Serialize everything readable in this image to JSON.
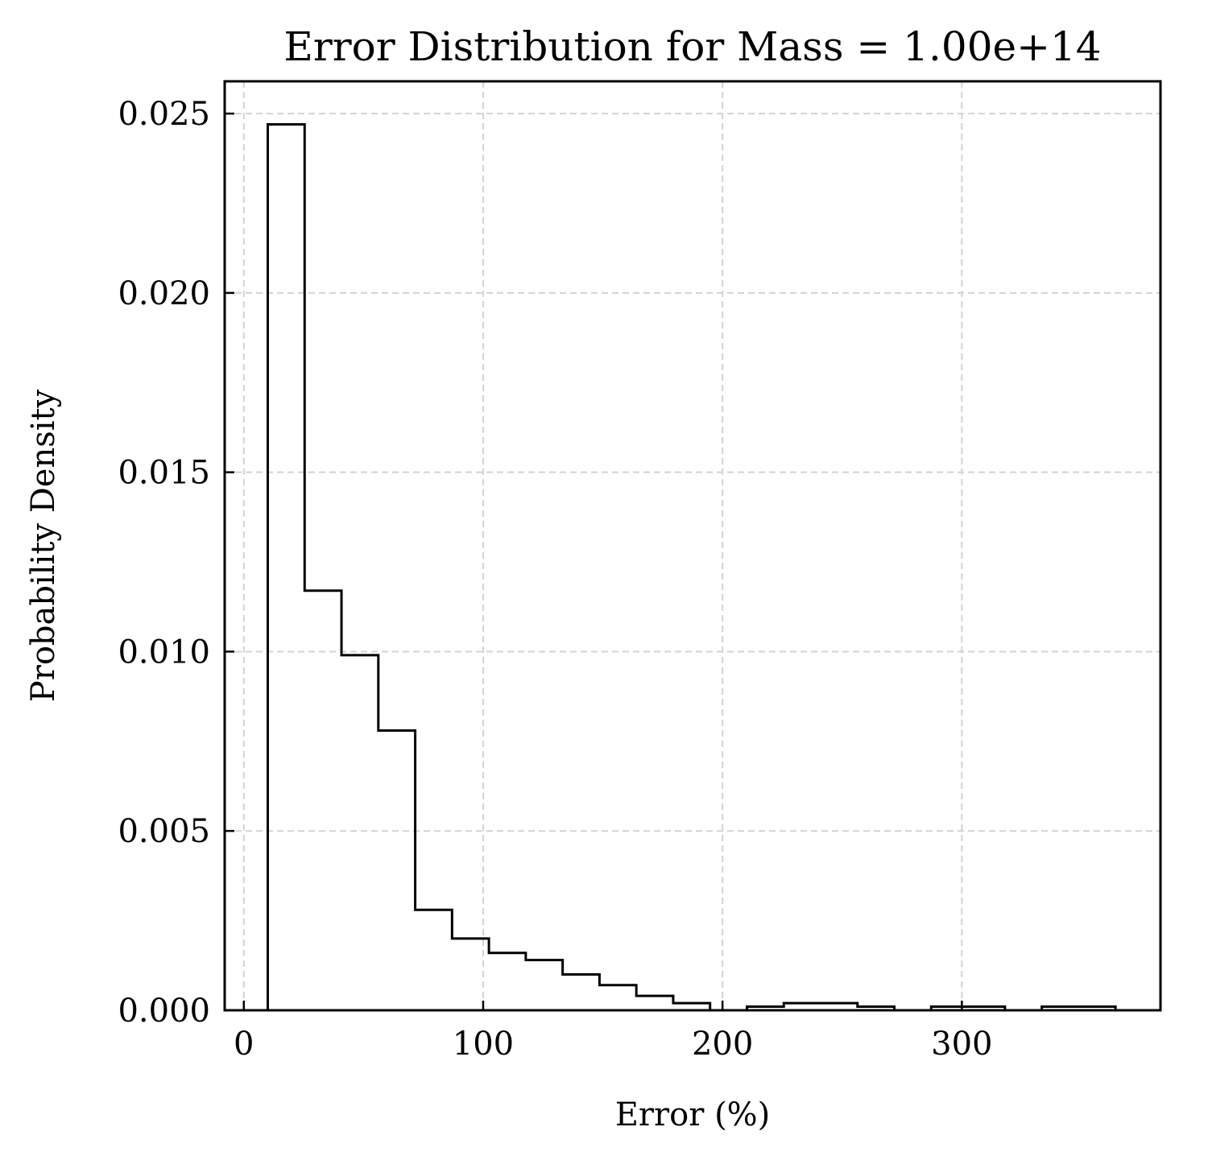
{
  "chart_data": {
    "type": "bar",
    "histtype": "step",
    "title": "Error Distribution for Mass = 1.00e+14",
    "xlabel": "Error (%)",
    "ylabel": "Probability Density",
    "xlim": [
      -8,
      383
    ],
    "ylim": [
      0,
      0.0259
    ],
    "grid": true,
    "x_ticks": [
      0,
      100,
      200,
      300
    ],
    "x_tick_labels": [
      "0",
      "100",
      "200",
      "300"
    ],
    "y_ticks": [
      0,
      0.005,
      0.01,
      0.015,
      0.02,
      0.025
    ],
    "y_tick_labels": [
      "0.000",
      "0.005",
      "0.010",
      "0.015",
      "0.020",
      "0.025"
    ],
    "bin_edges": [
      10,
      25.4,
      40.8,
      56.2,
      71.6,
      87.0,
      102.4,
      117.8,
      133.2,
      148.6,
      164.0,
      179.4,
      194.8,
      210.2,
      225.6,
      241.0,
      256.4,
      271.8,
      287.2,
      302.6,
      318.0,
      333.4,
      348.8,
      364.2
    ],
    "values": [
      0.0247,
      0.0117,
      0.0099,
      0.0078,
      0.0028,
      0.002,
      0.0016,
      0.0014,
      0.001,
      0.0007,
      0.0004,
      0.0002,
      0.0,
      0.0001,
      0.0002,
      0.0002,
      0.0001,
      0.0,
      0.0001,
      0.0001,
      0.0,
      0.0001,
      0.0001
    ]
  }
}
